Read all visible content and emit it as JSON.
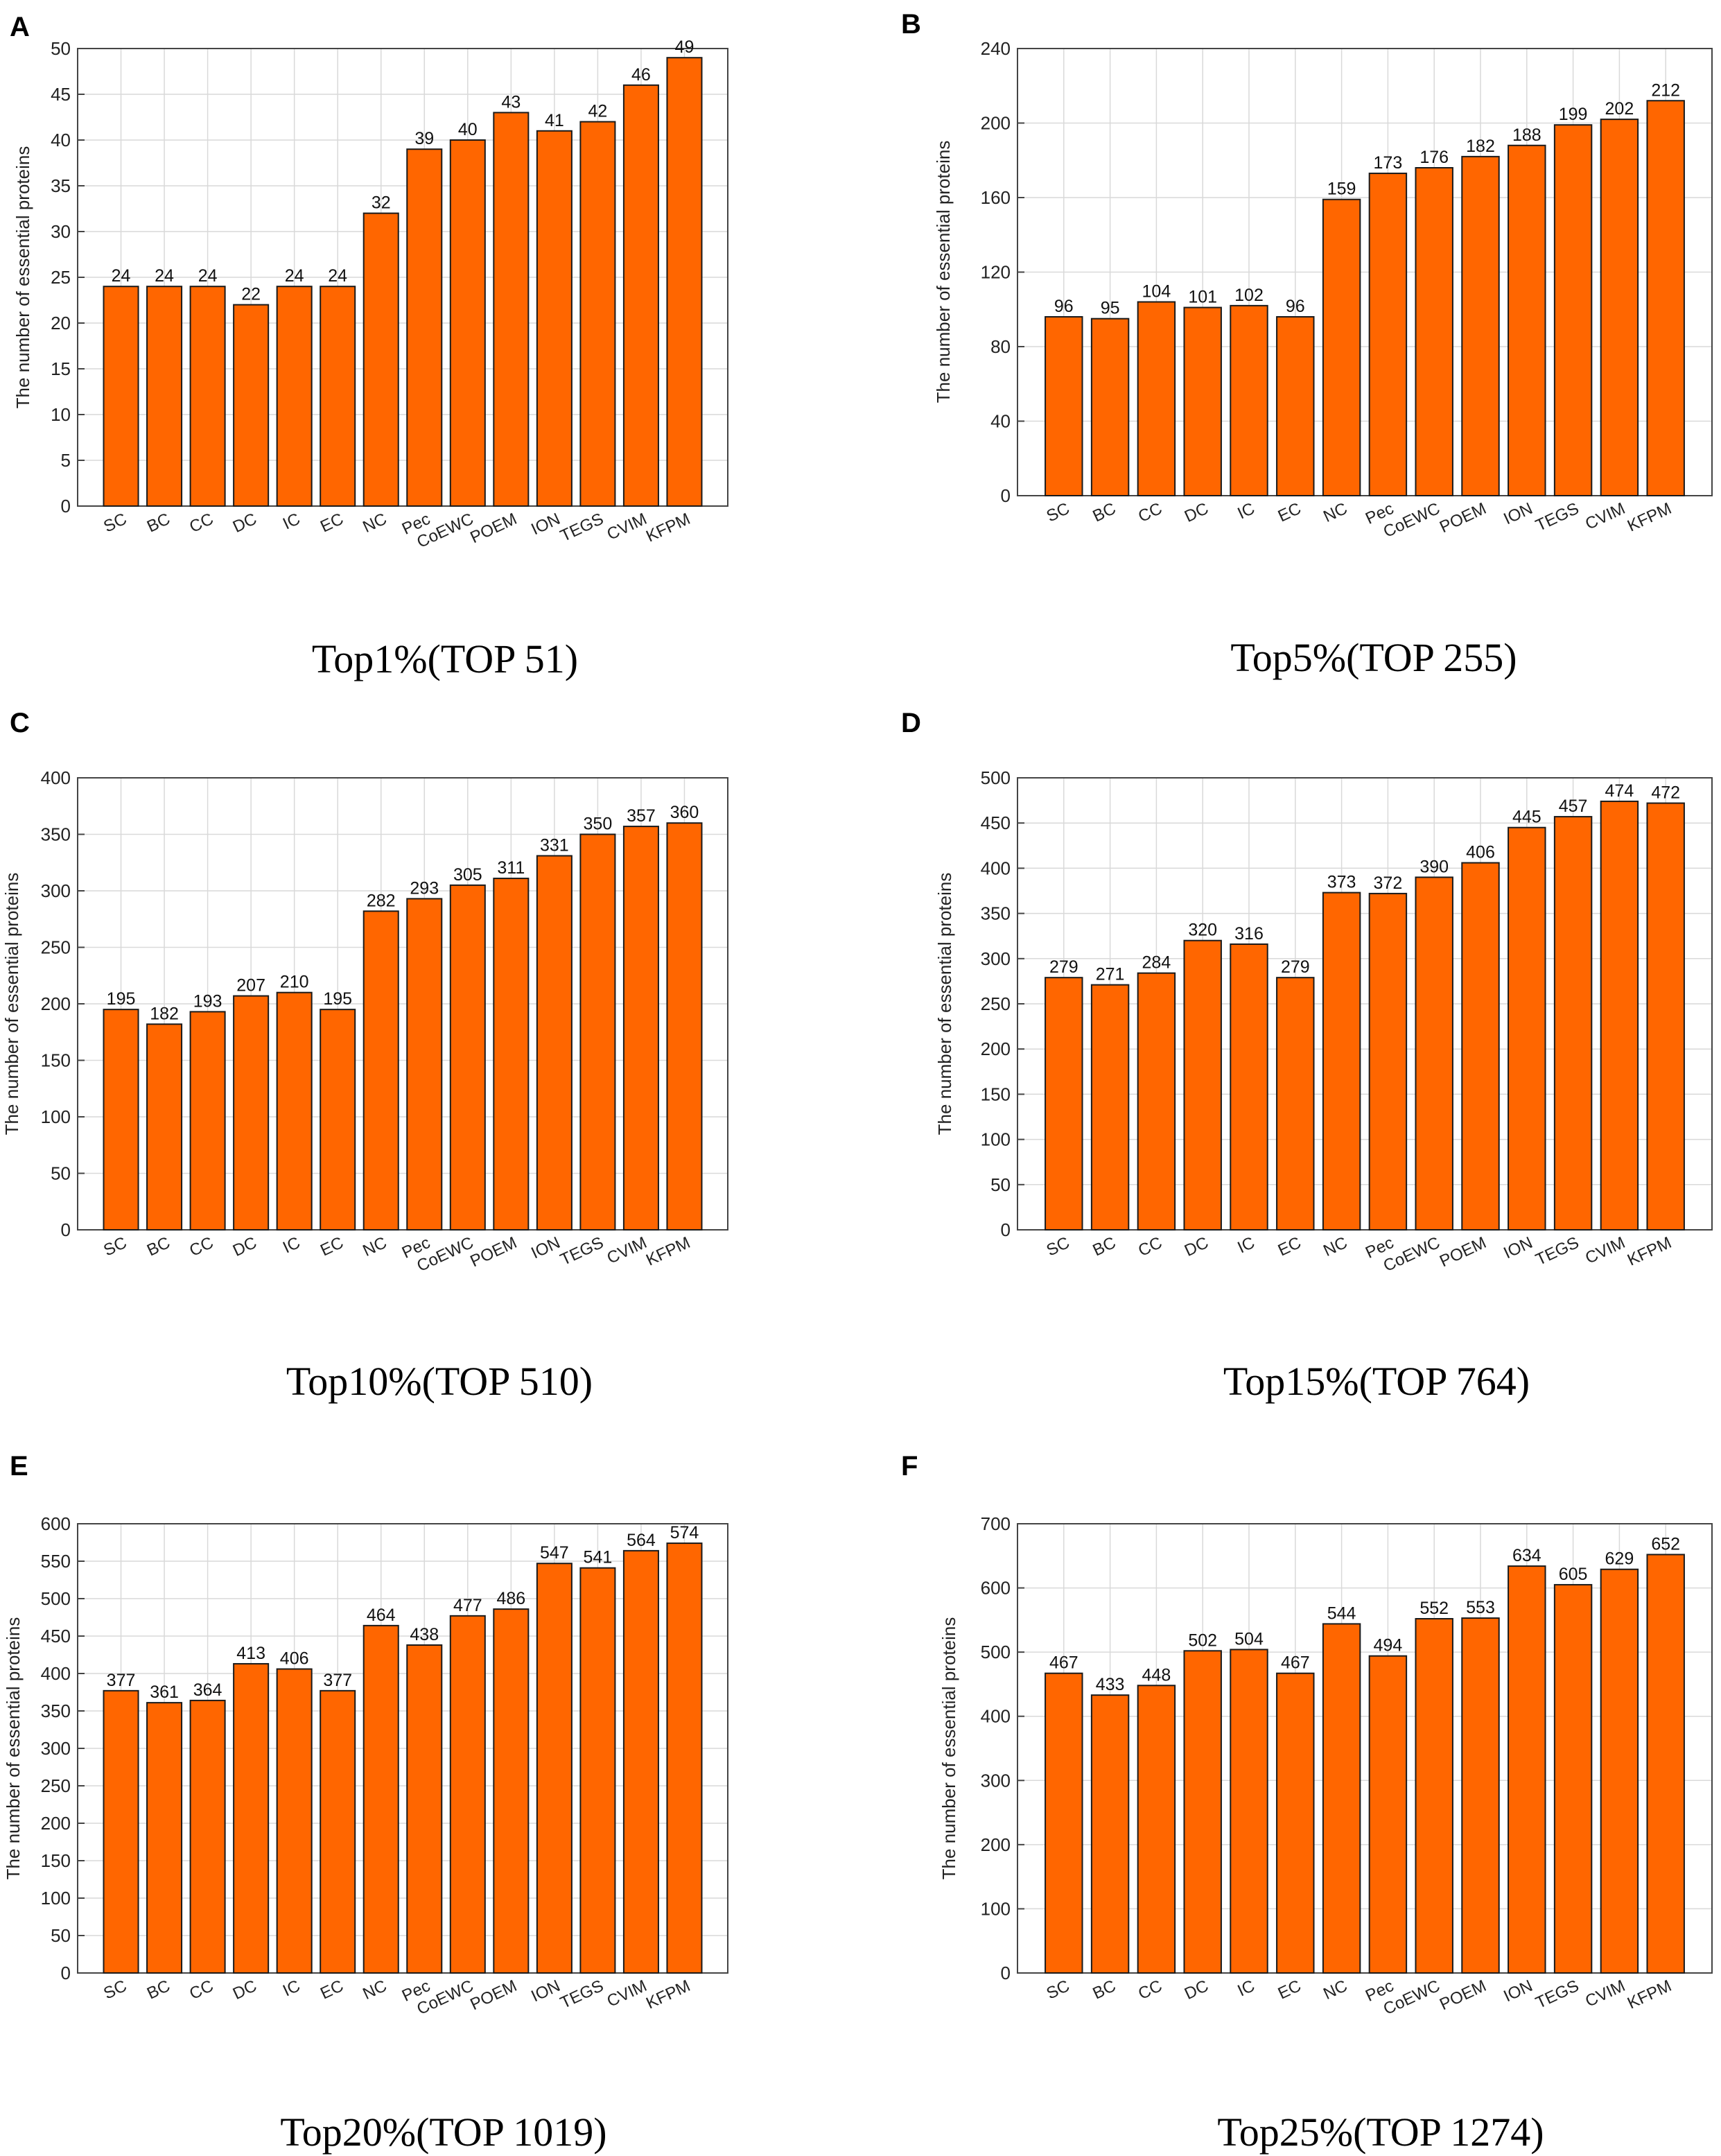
{
  "colors": {
    "bar_fill": "#ff6600",
    "bar_stroke": "#1a1a1a",
    "axis": "#444444",
    "grid": "#d9d9d9"
  },
  "chart_data": [
    {
      "type": "bar",
      "panel": "A",
      "caption": "Top1%(TOP 51)",
      "ylabel": "The number of essential proteins",
      "categories": [
        "SC",
        "BC",
        "CC",
        "DC",
        "IC",
        "EC",
        "NC",
        "Pec",
        "CoEWC",
        "POEM",
        "ION",
        "TEGS",
        "CVIM",
        "KFPM"
      ],
      "values": [
        24,
        24,
        24,
        22,
        24,
        24,
        32,
        39,
        40,
        43,
        41,
        42,
        46,
        49
      ],
      "ylim": [
        0,
        50
      ],
      "yticks": [
        0,
        5,
        10,
        15,
        20,
        25,
        30,
        35,
        40,
        45,
        50
      ]
    },
    {
      "type": "bar",
      "panel": "B",
      "caption": "Top5%(TOP 255)",
      "ylabel": "The number of essential proteins",
      "categories": [
        "SC",
        "BC",
        "CC",
        "DC",
        "IC",
        "EC",
        "NC",
        "Pec",
        "CoEWC",
        "POEM",
        "ION",
        "TEGS",
        "CVIM",
        "KFPM"
      ],
      "values": [
        96,
        95,
        104,
        101,
        102,
        96,
        159,
        173,
        176,
        182,
        188,
        199,
        202,
        212
      ],
      "ylim": [
        0,
        240
      ],
      "yticks": [
        0,
        40,
        80,
        120,
        160,
        200,
        240
      ]
    },
    {
      "type": "bar",
      "panel": "C",
      "caption": "Top10%(TOP 510)",
      "ylabel": "The number of essential proteins",
      "categories": [
        "SC",
        "BC",
        "CC",
        "DC",
        "IC",
        "EC",
        "NC",
        "Pec",
        "CoEWC",
        "POEM",
        "ION",
        "TEGS",
        "CVIM",
        "KFPM"
      ],
      "values": [
        195,
        182,
        193,
        207,
        210,
        195,
        282,
        293,
        305,
        311,
        331,
        350,
        357,
        360
      ],
      "ylim": [
        0,
        400
      ],
      "yticks": [
        0,
        50,
        100,
        150,
        200,
        250,
        300,
        350,
        400
      ]
    },
    {
      "type": "bar",
      "panel": "D",
      "caption": "Top15%(TOP 764)",
      "ylabel": "The number of essential proteins",
      "categories": [
        "SC",
        "BC",
        "CC",
        "DC",
        "IC",
        "EC",
        "NC",
        "Pec",
        "CoEWC",
        "POEM",
        "ION",
        "TEGS",
        "CVIM",
        "KFPM"
      ],
      "values": [
        279,
        271,
        284,
        320,
        316,
        279,
        373,
        372,
        390,
        406,
        445,
        457,
        474,
        472
      ],
      "ylim": [
        0,
        500
      ],
      "yticks": [
        0,
        50,
        100,
        150,
        200,
        250,
        300,
        350,
        400,
        450,
        500
      ]
    },
    {
      "type": "bar",
      "panel": "E",
      "caption": "Top20%(TOP 1019)",
      "ylabel": "The number of essential proteins",
      "categories": [
        "SC",
        "BC",
        "CC",
        "DC",
        "IC",
        "EC",
        "NC",
        "Pec",
        "CoEWC",
        "POEM",
        "ION",
        "TEGS",
        "CVIM",
        "KFPM"
      ],
      "values": [
        377,
        361,
        364,
        413,
        406,
        377,
        464,
        438,
        477,
        486,
        547,
        541,
        564,
        574
      ],
      "ylim": [
        0,
        600
      ],
      "yticks": [
        0,
        50,
        100,
        150,
        200,
        250,
        300,
        350,
        400,
        450,
        500,
        550,
        600
      ]
    },
    {
      "type": "bar",
      "panel": "F",
      "caption": "Top25%(TOP 1274)",
      "ylabel": "The number of essential proteins",
      "categories": [
        "SC",
        "BC",
        "CC",
        "DC",
        "IC",
        "EC",
        "NC",
        "Pec",
        "CoEWC",
        "POEM",
        "ION",
        "TEGS",
        "CVIM",
        "KFPM"
      ],
      "values": [
        467,
        433,
        448,
        502,
        504,
        467,
        544,
        494,
        552,
        553,
        634,
        605,
        629,
        652
      ],
      "ylim": [
        0,
        700
      ],
      "yticks": [
        0,
        100,
        200,
        300,
        400,
        500,
        600,
        700
      ]
    }
  ]
}
